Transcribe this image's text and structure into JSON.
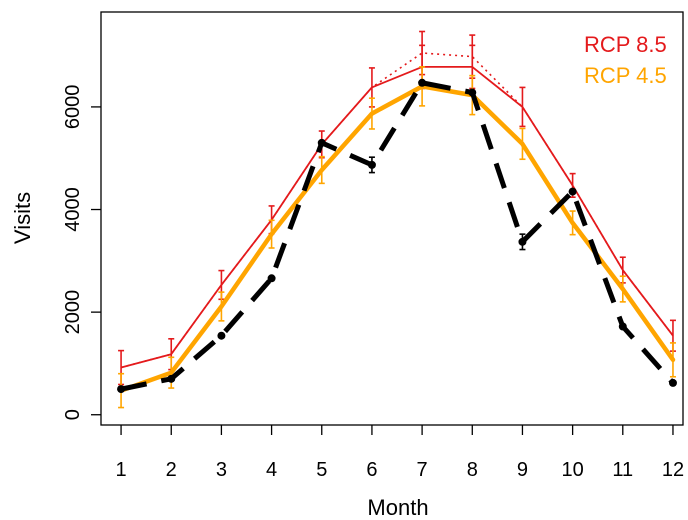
{
  "chart_data": {
    "type": "line",
    "xlabel": "Month",
    "ylabel": "Visits",
    "x": [
      1,
      2,
      3,
      4,
      5,
      6,
      7,
      8,
      9,
      10,
      11,
      12
    ],
    "xlim": [
      0.6,
      12.2
    ],
    "ylim": [
      -200,
      7850
    ],
    "x_ticks": [
      "1",
      "2",
      "3",
      "4",
      "5",
      "6",
      "7",
      "8",
      "9",
      "10",
      "11",
      "12"
    ],
    "y_ticks": [
      "0",
      "2000",
      "4000",
      "6000"
    ],
    "y_tick_values": [
      0,
      2000,
      4000,
      6000
    ],
    "grid": false,
    "legend_position": "top-right",
    "series": [
      {
        "name": "RCP 8.5",
        "color": "#e41a1c",
        "style": "thin-solid",
        "values": [
          920,
          1180,
          2530,
          3800,
          5270,
          6380,
          6780,
          6780,
          6000,
          4470,
          2820,
          1540
        ],
        "error": [
          330,
          300,
          280,
          270,
          260,
          380,
          420,
          420,
          380,
          230,
          250,
          300
        ]
      },
      {
        "name": "",
        "color": "#e41a1c",
        "style": "dotted",
        "values": [
          920,
          1180,
          2530,
          3800,
          5270,
          6380,
          7050,
          6980,
          6000,
          4470,
          2820,
          1540
        ],
        "error": [
          0,
          0,
          0,
          0,
          0,
          0,
          420,
          420,
          0,
          0,
          0,
          0
        ]
      },
      {
        "name": "RCP 4.5",
        "color": "#ffa500",
        "style": "thick-solid",
        "values": [
          470,
          820,
          2110,
          3520,
          4770,
          5870,
          6400,
          6230,
          5280,
          3740,
          2450,
          1070
        ],
        "error": [
          330,
          300,
          280,
          270,
          260,
          300,
          380,
          380,
          300,
          230,
          250,
          330
        ]
      },
      {
        "name": "",
        "color": "#000000",
        "style": "dashed",
        "values": [
          500,
          700,
          1540,
          2660,
          5300,
          4870,
          6470,
          6280,
          3370,
          4350,
          1720,
          620
        ],
        "error": [
          0,
          0,
          0,
          0,
          0,
          150,
          0,
          0,
          150,
          0,
          0,
          0
        ]
      }
    ]
  }
}
